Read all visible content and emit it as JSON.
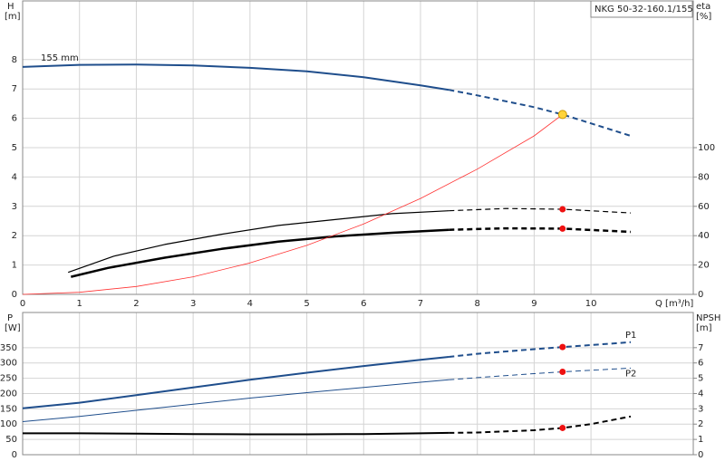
{
  "chart_data": [
    {
      "type": "line",
      "model_label": "NKG 50-32-160.1/155",
      "ylabel": "H",
      "yunit": "[m]",
      "y2label": "eta",
      "y2unit": "[%]",
      "xlabel": "Q [m³/h]",
      "xlim": [
        0,
        11.8
      ],
      "xticks": [
        0,
        1,
        2,
        3,
        4,
        5,
        6,
        7,
        8,
        9,
        10
      ],
      "ylim": [
        0,
        10
      ],
      "yticks": [
        0,
        1,
        2,
        3,
        4,
        5,
        6,
        7,
        8
      ],
      "y2lim": [
        0,
        200
      ],
      "y2ticks": [
        0,
        20,
        40,
        60,
        80,
        100
      ],
      "grid": true,
      "dashed_from_x": 7.5,
      "series": [
        {
          "name": "155 mm",
          "color": "#1f4e8c",
          "width": 2,
          "dash_after": true,
          "x": [
            0,
            1,
            2,
            3,
            4,
            5,
            6,
            7,
            7.5,
            8,
            9,
            9.5,
            10.7
          ],
          "values": [
            7.75,
            7.82,
            7.83,
            7.8,
            7.72,
            7.6,
            7.4,
            7.12,
            6.97,
            6.78,
            6.38,
            6.13,
            5.4
          ]
        },
        {
          "color": "#000000",
          "width": 1.2,
          "axis": "y2",
          "dash_after": true,
          "x": [
            0.8,
            1.6,
            2.5,
            3.5,
            4.5,
            5.5,
            6.5,
            7.5,
            8.5,
            9.5,
            10.7
          ],
          "values": [
            15,
            26,
            34,
            41,
            47,
            51,
            55,
            57,
            58.5,
            58,
            55.5
          ]
        },
        {
          "color": "#000000",
          "width": 2.5,
          "axis": "y2",
          "dash_after": true,
          "x": [
            0.85,
            1.5,
            2.5,
            3.5,
            4.5,
            5.5,
            6.5,
            7.5,
            8.5,
            9.5,
            10.7
          ],
          "values": [
            12,
            18,
            25,
            31,
            36,
            39.5,
            42,
            44,
            45,
            44.8,
            42.6
          ]
        },
        {
          "color": "#ff3333",
          "width": 0.8,
          "dash_after": false,
          "x": [
            0,
            1,
            2,
            3,
            4,
            5,
            6,
            7,
            8,
            9,
            9.5
          ],
          "values": [
            0,
            0.07,
            0.27,
            0.6,
            1.07,
            1.67,
            2.4,
            3.27,
            4.27,
            5.4,
            6.13
          ]
        }
      ],
      "points": [
        {
          "x": 9.5,
          "y": 6.13,
          "color": "#ffd43b"
        },
        {
          "x": 9.5,
          "y": 58,
          "color": "#ee1111",
          "axis": "y2"
        },
        {
          "x": 9.5,
          "y": 44.8,
          "color": "#ee1111",
          "axis": "y2"
        }
      ]
    },
    {
      "type": "line",
      "ylabel": "P",
      "yunit": "[W]",
      "y2label": "NPSH",
      "y2unit": "[m]",
      "xlim": [
        0,
        11.8
      ],
      "ylim": [
        0,
        465
      ],
      "yticks": [
        0,
        50,
        100,
        150,
        200,
        250,
        300,
        350
      ],
      "y2lim": [
        0,
        9.3
      ],
      "y2ticks": [
        0,
        1,
        2,
        3,
        4,
        5,
        6,
        7
      ],
      "grid": true,
      "dashed_from_x": 7.5,
      "series": [
        {
          "name": "P1",
          "color": "#1f4e8c",
          "width": 2,
          "dash_after": true,
          "x": [
            0,
            1,
            2,
            3,
            4,
            5,
            6,
            7,
            7.5,
            8,
            9,
            9.5,
            10.7
          ],
          "values": [
            152,
            170,
            195,
            220,
            245,
            268,
            290,
            310,
            320,
            330,
            345,
            352,
            368
          ]
        },
        {
          "name": "P2",
          "color": "#1f4e8c",
          "width": 1,
          "dash_after": true,
          "x": [
            0,
            1,
            2,
            3,
            4,
            5,
            6,
            7,
            7.5,
            8,
            9,
            9.5,
            10.7
          ],
          "values": [
            108,
            125,
            145,
            165,
            185,
            203,
            220,
            237,
            245,
            252,
            265,
            271,
            283
          ]
        },
        {
          "color": "#000000",
          "width": 2,
          "axis": "y2",
          "dash_after": true,
          "x": [
            0,
            1,
            2,
            3,
            4,
            5,
            6,
            7,
            7.5,
            8,
            9,
            9.5,
            10,
            10.7
          ],
          "values": [
            1.4,
            1.4,
            1.38,
            1.35,
            1.33,
            1.33,
            1.35,
            1.4,
            1.43,
            1.45,
            1.6,
            1.75,
            2.0,
            2.5
          ]
        }
      ],
      "points": [
        {
          "x": 9.5,
          "y": 352,
          "color": "#ee1111"
        },
        {
          "x": 9.5,
          "y": 271,
          "color": "#ee1111"
        },
        {
          "x": 9.5,
          "y": 1.75,
          "color": "#ee1111",
          "axis": "y2"
        }
      ]
    }
  ]
}
